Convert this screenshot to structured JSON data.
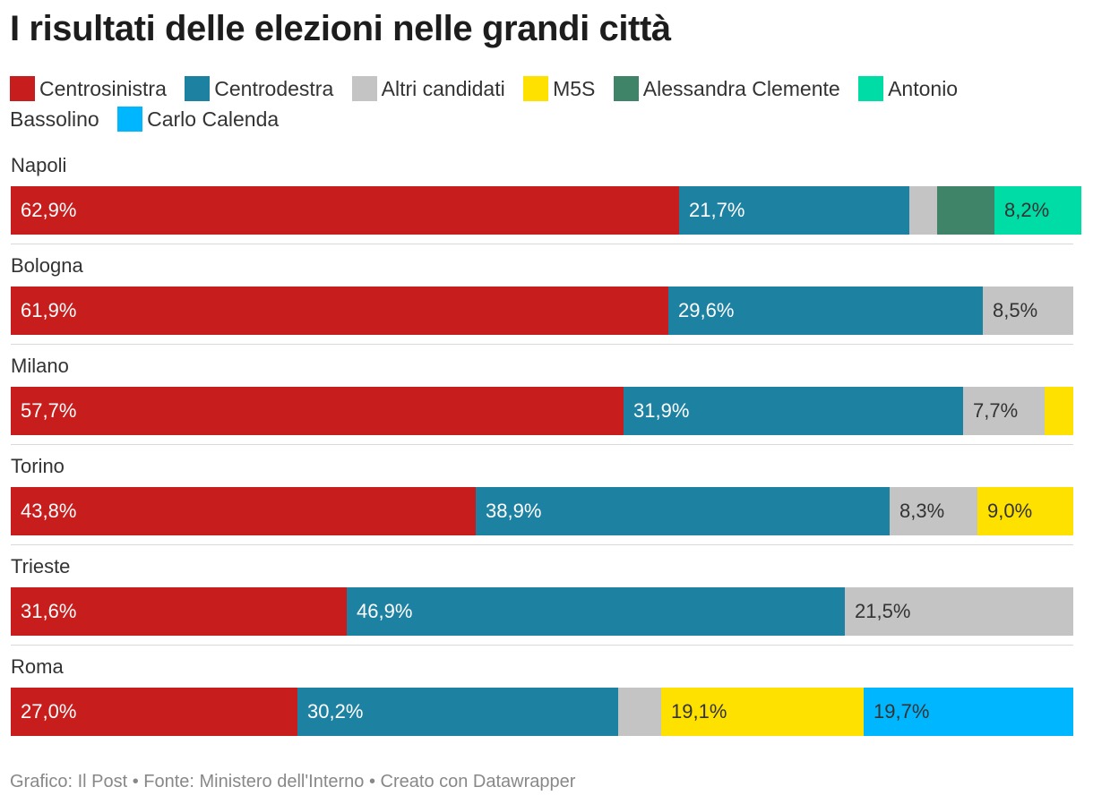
{
  "title": "I risultati delle elezioni nelle grandi città",
  "footer": "Grafico: Il Post • Fonte: Ministero dell'Interno • Creato con Datawrapper",
  "chart_data": {
    "type": "bar",
    "orientation": "horizontal",
    "stacked": true,
    "title": "I risultati delle elezioni nelle grandi città",
    "xlim": [
      0,
      100
    ],
    "unit": "%",
    "grid": false,
    "legend_position": "top",
    "categories": [
      "Napoli",
      "Bologna",
      "Milano",
      "Torino",
      "Trieste",
      "Roma"
    ],
    "series": [
      {
        "name": "Centrosinistra",
        "color": "#c71e1d",
        "label_color": "#ffffff",
        "values": [
          62.9,
          61.9,
          57.7,
          43.8,
          31.6,
          27.0
        ],
        "labels": [
          "62,9%",
          "61,9%",
          "57,7%",
          "43,8%",
          "31,6%",
          "27,0%"
        ]
      },
      {
        "name": "Centrodestra",
        "color": "#1d81a2",
        "label_color": "#ffffff",
        "values": [
          21.7,
          29.6,
          31.9,
          38.9,
          46.9,
          30.2
        ],
        "labels": [
          "21,7%",
          "29,6%",
          "31,9%",
          "38,9%",
          "46,9%",
          "30,2%"
        ]
      },
      {
        "name": "Altri candidati",
        "color": "#c4c4c4",
        "label_color": "#333333",
        "values": [
          2.6,
          8.5,
          7.7,
          8.3,
          21.5,
          4.0
        ],
        "labels": [
          "",
          "8,5%",
          "7,7%",
          "8,3%",
          "21,5%",
          ""
        ]
      },
      {
        "name": "M5S",
        "color": "#ffe100",
        "label_color": "#333333",
        "values": [
          0,
          0,
          2.7,
          9.0,
          0,
          19.1
        ],
        "labels": [
          "",
          "",
          "",
          "9,0%",
          "",
          "19,1%"
        ]
      },
      {
        "name": "Alessandra Clemente",
        "color": "#3f8468",
        "label_color": "#ffffff",
        "values": [
          5.4,
          0,
          0,
          0,
          0,
          0
        ],
        "labels": [
          "",
          "",
          "",
          "",
          "",
          ""
        ]
      },
      {
        "name": "Antonio Bassolino",
        "color": "#00dca6",
        "label_color": "#333333",
        "values": [
          8.2,
          0,
          0,
          0,
          0,
          0
        ],
        "labels": [
          "8,2%",
          "",
          "",
          "",
          "",
          ""
        ]
      },
      {
        "name": "Carlo Calenda",
        "color": "#00b6ff",
        "label_color": "#333333",
        "values": [
          0,
          0,
          0,
          0,
          0,
          19.7
        ],
        "labels": [
          "",
          "",
          "",
          "",
          "",
          "19,7%"
        ]
      }
    ]
  }
}
